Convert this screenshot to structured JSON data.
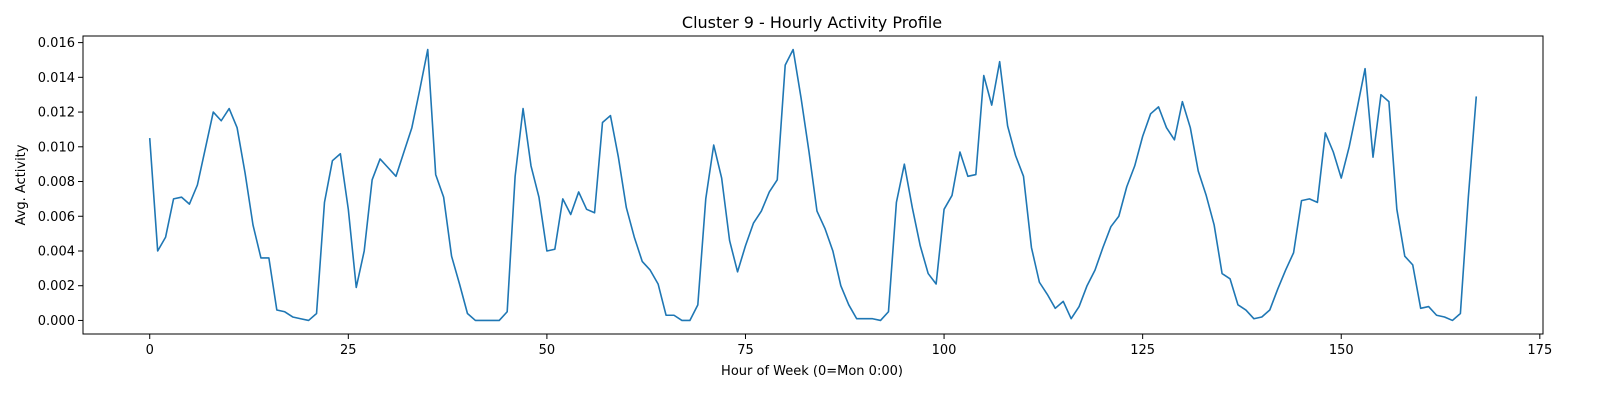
{
  "chart_data": {
    "type": "line",
    "title": "Cluster 9 - Hourly Activity Profile",
    "xlabel": "Hour of Week (0=Mon 0:00)",
    "ylabel": "Avg. Activity",
    "xlim": [
      -8.4,
      175.4
    ],
    "ylim": [
      -0.00078,
      0.01638
    ],
    "xticks": [
      0,
      25,
      50,
      75,
      100,
      125,
      150,
      175
    ],
    "xtick_labels": [
      "0",
      "25",
      "50",
      "75",
      "100",
      "125",
      "150",
      "175"
    ],
    "yticks": [
      0,
      0.002,
      0.004,
      0.006,
      0.008,
      0.01,
      0.012,
      0.014,
      0.016
    ],
    "ytick_labels": [
      "0.000",
      "0.002",
      "0.004",
      "0.006",
      "0.008",
      "0.010",
      "0.012",
      "0.014",
      "0.016"
    ],
    "grid": false,
    "legend": "none",
    "series": [
      {
        "color": "#1f77b4",
        "x": [
          0,
          1,
          2,
          3,
          4,
          5,
          6,
          7,
          8,
          9,
          10,
          11,
          12,
          13,
          14,
          15,
          16,
          17,
          18,
          19,
          20,
          21,
          22,
          23,
          24,
          25,
          26,
          27,
          28,
          29,
          30,
          31,
          32,
          33,
          34,
          35,
          36,
          37,
          38,
          39,
          40,
          41,
          42,
          43,
          44,
          45,
          46,
          47,
          48,
          49,
          50,
          51,
          52,
          53,
          54,
          55,
          56,
          57,
          58,
          59,
          60,
          61,
          62,
          63,
          64,
          65,
          66,
          67,
          68,
          69,
          70,
          71,
          72,
          73,
          74,
          75,
          76,
          77,
          78,
          79,
          80,
          81,
          82,
          83,
          84,
          85,
          86,
          87,
          88,
          89,
          90,
          91,
          92,
          93,
          94,
          95,
          96,
          97,
          98,
          99,
          100,
          101,
          102,
          103,
          104,
          105,
          106,
          107,
          108,
          109,
          110,
          111,
          112,
          113,
          114,
          115,
          116,
          117,
          118,
          119,
          120,
          121,
          122,
          123,
          124,
          125,
          126,
          127,
          128,
          129,
          130,
          131,
          132,
          133,
          134,
          135,
          136,
          137,
          138,
          139,
          140,
          141,
          142,
          143,
          144,
          145,
          146,
          147,
          148,
          149,
          150,
          151,
          152,
          153,
          154,
          155,
          156,
          157,
          158,
          159,
          160,
          161,
          162,
          163,
          164,
          165,
          166,
          167
        ],
        "values": [
          0.0105,
          0.004,
          0.0048,
          0.007,
          0.0071,
          0.0067,
          0.0078,
          0.0099,
          0.012,
          0.0115,
          0.0122,
          0.0111,
          0.0085,
          0.0055,
          0.0036,
          0.0036,
          0.0006,
          0.0005,
          0.0002,
          0.0001,
          0.0,
          0.0004,
          0.0068,
          0.0092,
          0.0096,
          0.0064,
          0.0019,
          0.004,
          0.0081,
          0.0093,
          0.0088,
          0.0083,
          0.0097,
          0.0111,
          0.0133,
          0.0156,
          0.0084,
          0.0071,
          0.0037,
          0.0021,
          0.0004,
          0.0,
          0.0,
          0.0,
          0.0,
          0.0005,
          0.0083,
          0.0122,
          0.0089,
          0.0071,
          0.004,
          0.0041,
          0.007,
          0.0061,
          0.0074,
          0.0064,
          0.0062,
          0.0114,
          0.0118,
          0.0094,
          0.0065,
          0.0048,
          0.0034,
          0.0029,
          0.0021,
          0.0003,
          0.0003,
          0.0,
          0.0,
          0.0009,
          0.007,
          0.0101,
          0.0082,
          0.0046,
          0.0028,
          0.0043,
          0.0056,
          0.0063,
          0.0074,
          0.0081,
          0.0147,
          0.0156,
          0.0128,
          0.0097,
          0.0063,
          0.0053,
          0.004,
          0.002,
          0.0009,
          0.0001,
          0.0001,
          0.0001,
          0.0,
          0.0005,
          0.0068,
          0.009,
          0.0065,
          0.0043,
          0.0027,
          0.0021,
          0.0064,
          0.0072,
          0.0097,
          0.0083,
          0.0084,
          0.0141,
          0.0124,
          0.0149,
          0.0112,
          0.0095,
          0.0083,
          0.0042,
          0.0022,
          0.0015,
          0.0007,
          0.0011,
          0.0001,
          0.0008,
          0.002,
          0.0029,
          0.0042,
          0.0054,
          0.006,
          0.0077,
          0.0089,
          0.0106,
          0.0119,
          0.0123,
          0.0111,
          0.0104,
          0.0126,
          0.0111,
          0.0086,
          0.0072,
          0.0055,
          0.0027,
          0.0024,
          0.0009,
          0.0006,
          0.0001,
          0.0002,
          0.0006,
          0.0018,
          0.0029,
          0.0039,
          0.0069,
          0.007,
          0.0068,
          0.0108,
          0.0097,
          0.0082,
          0.01,
          0.0122,
          0.0145,
          0.0094,
          0.013,
          0.0126,
          0.0064,
          0.0037,
          0.0032,
          0.0007,
          0.0008,
          0.0003,
          0.0002,
          0.0,
          0.0004,
          0.0071,
          0.0129
        ]
      }
    ]
  }
}
